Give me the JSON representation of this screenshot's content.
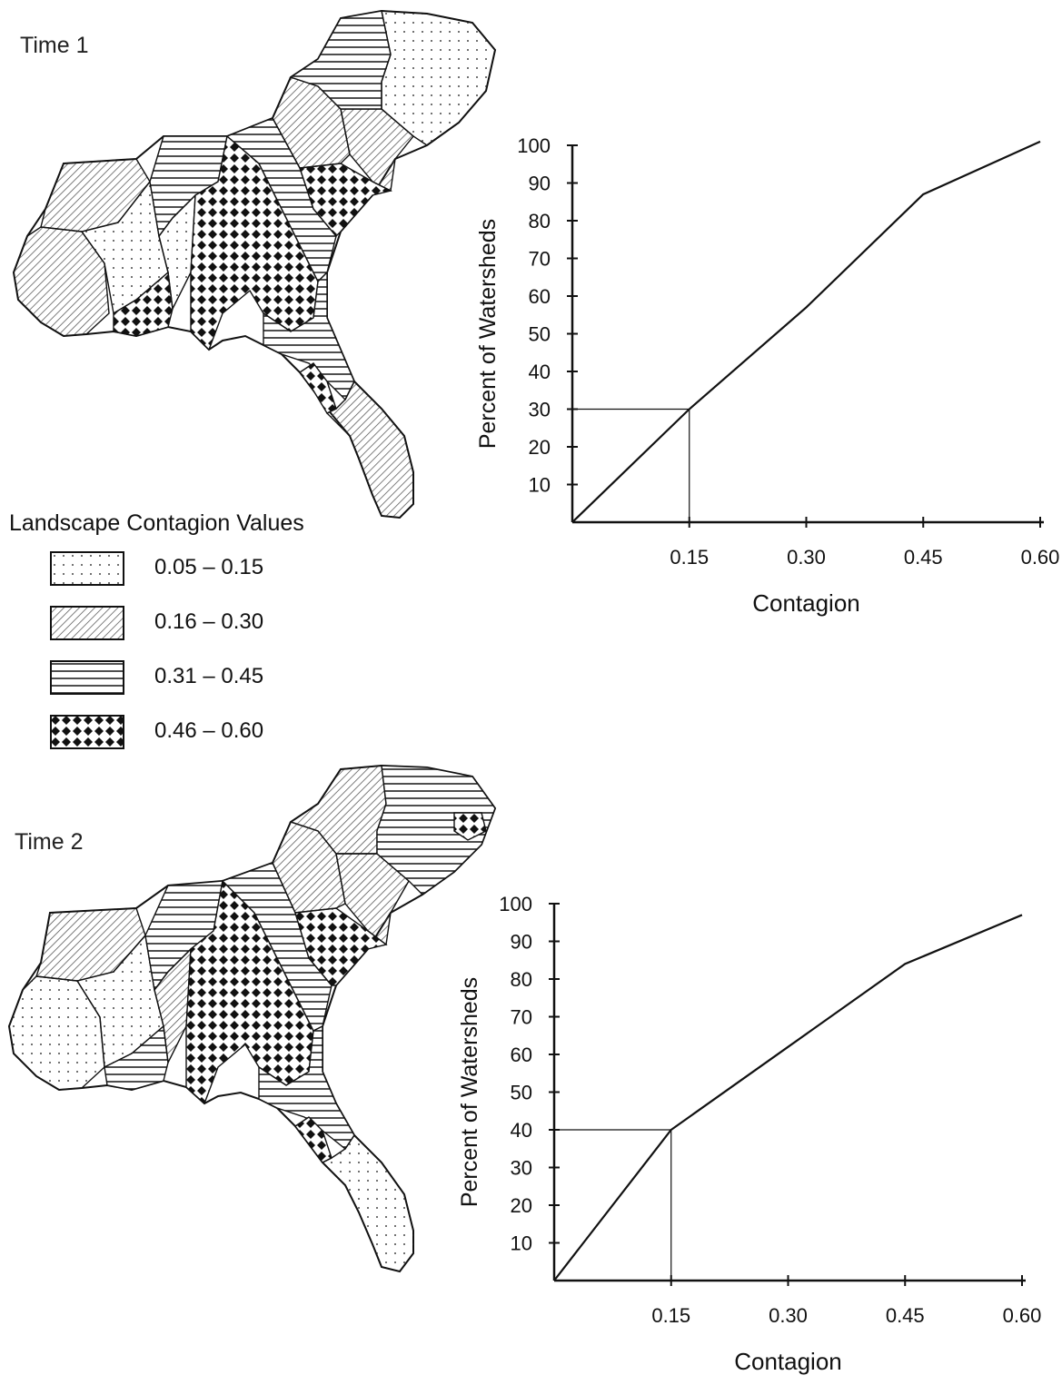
{
  "panels": [
    {
      "label": "Time 1"
    },
    {
      "label": "Time 2"
    }
  ],
  "legend": {
    "title": "Landscape Contagion Values",
    "items": [
      {
        "range": "0.05 – 0.15",
        "pattern": "dots"
      },
      {
        "range": "0.16 – 0.30",
        "pattern": "diagonal"
      },
      {
        "range": "0.31 – 0.45",
        "pattern": "horizontal"
      },
      {
        "range": "0.46 – 0.60",
        "pattern": "diamonds"
      }
    ]
  },
  "chart_data": [
    {
      "type": "line",
      "title": "",
      "xlabel": "Contagion",
      "ylabel": "Percent of Watersheds",
      "xlim": [
        0,
        0.6
      ],
      "ylim": [
        0,
        100
      ],
      "x_ticks": [
        "0.15",
        "0.30",
        "0.45",
        "0.60"
      ],
      "y_ticks": [
        "10",
        "20",
        "30",
        "40",
        "50",
        "60",
        "70",
        "80",
        "90",
        "100"
      ],
      "series": [
        {
          "x": [
            0,
            0.15,
            0.3,
            0.45,
            0.6
          ],
          "y": [
            0,
            30,
            57,
            87,
            101
          ]
        }
      ],
      "reference": {
        "x": 0.15,
        "y": 30
      },
      "grid": false
    },
    {
      "type": "line",
      "title": "",
      "xlabel": "Contagion",
      "ylabel": "Percent of Watersheds",
      "xlim": [
        0,
        0.6
      ],
      "ylim": [
        0,
        100
      ],
      "x_ticks": [
        "0.15",
        "0.30",
        "0.45",
        "0.60"
      ],
      "y_ticks": [
        "10",
        "20",
        "30",
        "40",
        "50",
        "60",
        "70",
        "80",
        "90",
        "100"
      ],
      "series": [
        {
          "x": [
            0,
            0.15,
            0.3,
            0.45,
            0.6
          ],
          "y": [
            0,
            40,
            62,
            84,
            97
          ]
        }
      ],
      "reference": {
        "x": 0.15,
        "y": 40
      },
      "grid": false
    }
  ],
  "colors": {
    "ink": "#111111",
    "paper": "#ffffff"
  }
}
